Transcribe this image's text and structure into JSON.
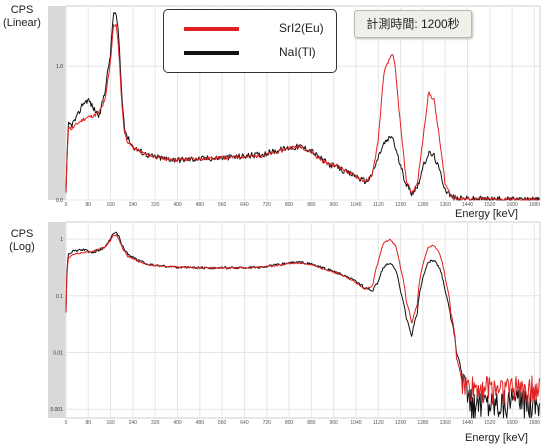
{
  "legend": {
    "items": [
      {
        "name": "SrI2(Eu)",
        "color": "#e02020"
      },
      {
        "name": "NaI(Tl)",
        "color": "#111111"
      }
    ]
  },
  "measurement_time_label": "計測時間: 1200秒",
  "chart_data": [
    {
      "type": "line",
      "ylabel": "CPS\n(Linear)",
      "xlabel": "Energy [keV]",
      "xlim": [
        0,
        1700
      ],
      "ylim": [
        0,
        1.45
      ],
      "ytick_labels": [
        "0.0",
        "1.0"
      ],
      "xtick_labels": [
        "0",
        "80",
        "160",
        "240",
        "320",
        "400",
        "480",
        "560",
        "640",
        "720",
        "800",
        "880",
        "960",
        "1040",
        "1120",
        "1200",
        "1280",
        "1360",
        "1440",
        "1520",
        "1600",
        "1680"
      ],
      "series": [
        {
          "name": "SrI2(Eu)",
          "color": "#e02020",
          "x": [
            0,
            8,
            20,
            40,
            60,
            80,
            100,
            120,
            140,
            160,
            170,
            180,
            190,
            200,
            210,
            220,
            240,
            260,
            300,
            350,
            400,
            500,
            600,
            700,
            760,
            800,
            840,
            880,
            900,
            940,
            980,
            1000,
            1040,
            1060,
            1080,
            1100,
            1120,
            1140,
            1160,
            1170,
            1180,
            1200,
            1220,
            1240,
            1260,
            1280,
            1300,
            1320,
            1340,
            1360,
            1380,
            1400,
            1700
          ],
          "y": [
            0.05,
            0.55,
            0.53,
            0.57,
            0.6,
            0.62,
            0.63,
            0.66,
            0.74,
            1.05,
            1.3,
            1.31,
            1.1,
            0.72,
            0.5,
            0.44,
            0.39,
            0.37,
            0.33,
            0.31,
            0.3,
            0.31,
            0.32,
            0.33,
            0.36,
            0.39,
            0.4,
            0.36,
            0.32,
            0.27,
            0.25,
            0.22,
            0.18,
            0.15,
            0.14,
            0.2,
            0.45,
            0.95,
            1.05,
            1.1,
            1.0,
            0.55,
            0.15,
            0.05,
            0.12,
            0.45,
            0.8,
            0.75,
            0.45,
            0.12,
            0.04,
            0.01,
            0.0
          ]
        },
        {
          "name": "NaI(Tl)",
          "color": "#111111",
          "x": [
            0,
            8,
            20,
            40,
            60,
            80,
            100,
            120,
            140,
            160,
            170,
            180,
            190,
            200,
            210,
            220,
            240,
            260,
            300,
            350,
            400,
            500,
            600,
            700,
            760,
            800,
            840,
            880,
            900,
            940,
            980,
            1000,
            1040,
            1060,
            1080,
            1100,
            1120,
            1140,
            1160,
            1170,
            1180,
            1200,
            1220,
            1240,
            1260,
            1280,
            1300,
            1320,
            1340,
            1360,
            1380,
            1400,
            1700
          ],
          "y": [
            0.05,
            0.57,
            0.56,
            0.62,
            0.72,
            0.75,
            0.68,
            0.63,
            0.82,
            1.1,
            1.4,
            1.38,
            1.2,
            0.78,
            0.55,
            0.47,
            0.4,
            0.37,
            0.33,
            0.31,
            0.3,
            0.31,
            0.32,
            0.34,
            0.37,
            0.39,
            0.4,
            0.37,
            0.33,
            0.27,
            0.24,
            0.21,
            0.18,
            0.15,
            0.14,
            0.2,
            0.32,
            0.42,
            0.46,
            0.48,
            0.4,
            0.25,
            0.12,
            0.05,
            0.1,
            0.24,
            0.35,
            0.33,
            0.22,
            0.08,
            0.03,
            0.01,
            0.0
          ]
        }
      ]
    },
    {
      "type": "line",
      "ylabel": "CPS\n(Log)",
      "xlabel": "Energy [keV]",
      "xlim": [
        0,
        1700
      ],
      "ylim": [
        0.0007,
        2.0
      ],
      "yscale": "log",
      "ytick_labels": [
        "0.001",
        "0.01",
        "0.1",
        "1"
      ],
      "xtick_labels": [
        "0",
        "80",
        "160",
        "240",
        "320",
        "400",
        "480",
        "560",
        "640",
        "720",
        "800",
        "880",
        "960",
        "1040",
        "1120",
        "1200",
        "1280",
        "1360",
        "1440",
        "1520",
        "1600",
        "1680"
      ],
      "series": [
        {
          "name": "SrI2(Eu)",
          "color": "#e02020",
          "x": [
            0,
            8,
            20,
            60,
            100,
            140,
            160,
            170,
            180,
            190,
            200,
            220,
            260,
            300,
            400,
            500,
            600,
            700,
            760,
            800,
            840,
            880,
            920,
            960,
            1000,
            1040,
            1070,
            1100,
            1120,
            1140,
            1160,
            1180,
            1200,
            1220,
            1240,
            1260,
            1280,
            1300,
            1320,
            1340,
            1360,
            1380,
            1400,
            1420,
            1440,
            1700
          ],
          "y": [
            0.05,
            0.45,
            0.52,
            0.58,
            0.62,
            0.72,
            0.95,
            1.15,
            1.18,
            1.0,
            0.72,
            0.5,
            0.4,
            0.35,
            0.32,
            0.31,
            0.31,
            0.32,
            0.34,
            0.37,
            0.38,
            0.35,
            0.3,
            0.26,
            0.22,
            0.17,
            0.13,
            0.15,
            0.4,
            0.85,
            0.98,
            0.8,
            0.3,
            0.08,
            0.03,
            0.07,
            0.35,
            0.72,
            0.78,
            0.55,
            0.2,
            0.05,
            0.008,
            0.003,
            0.0025,
            0.0025
          ]
        },
        {
          "name": "NaI(Tl)",
          "color": "#111111",
          "x": [
            0,
            8,
            20,
            60,
            100,
            140,
            160,
            170,
            180,
            190,
            200,
            220,
            260,
            300,
            400,
            500,
            600,
            700,
            760,
            800,
            840,
            880,
            920,
            960,
            1000,
            1040,
            1070,
            1100,
            1120,
            1140,
            1160,
            1180,
            1200,
            1220,
            1240,
            1260,
            1280,
            1300,
            1320,
            1340,
            1360,
            1380,
            1400,
            1420,
            1440,
            1700
          ],
          "y": [
            0.05,
            0.55,
            0.6,
            0.65,
            0.58,
            0.7,
            1.0,
            1.25,
            1.3,
            1.1,
            0.78,
            0.55,
            0.42,
            0.35,
            0.32,
            0.31,
            0.31,
            0.32,
            0.35,
            0.38,
            0.39,
            0.36,
            0.31,
            0.27,
            0.22,
            0.18,
            0.14,
            0.12,
            0.18,
            0.32,
            0.38,
            0.3,
            0.12,
            0.04,
            0.018,
            0.05,
            0.2,
            0.4,
            0.42,
            0.3,
            0.12,
            0.04,
            0.01,
            0.004,
            0.0015,
            0.0015
          ]
        }
      ]
    }
  ]
}
